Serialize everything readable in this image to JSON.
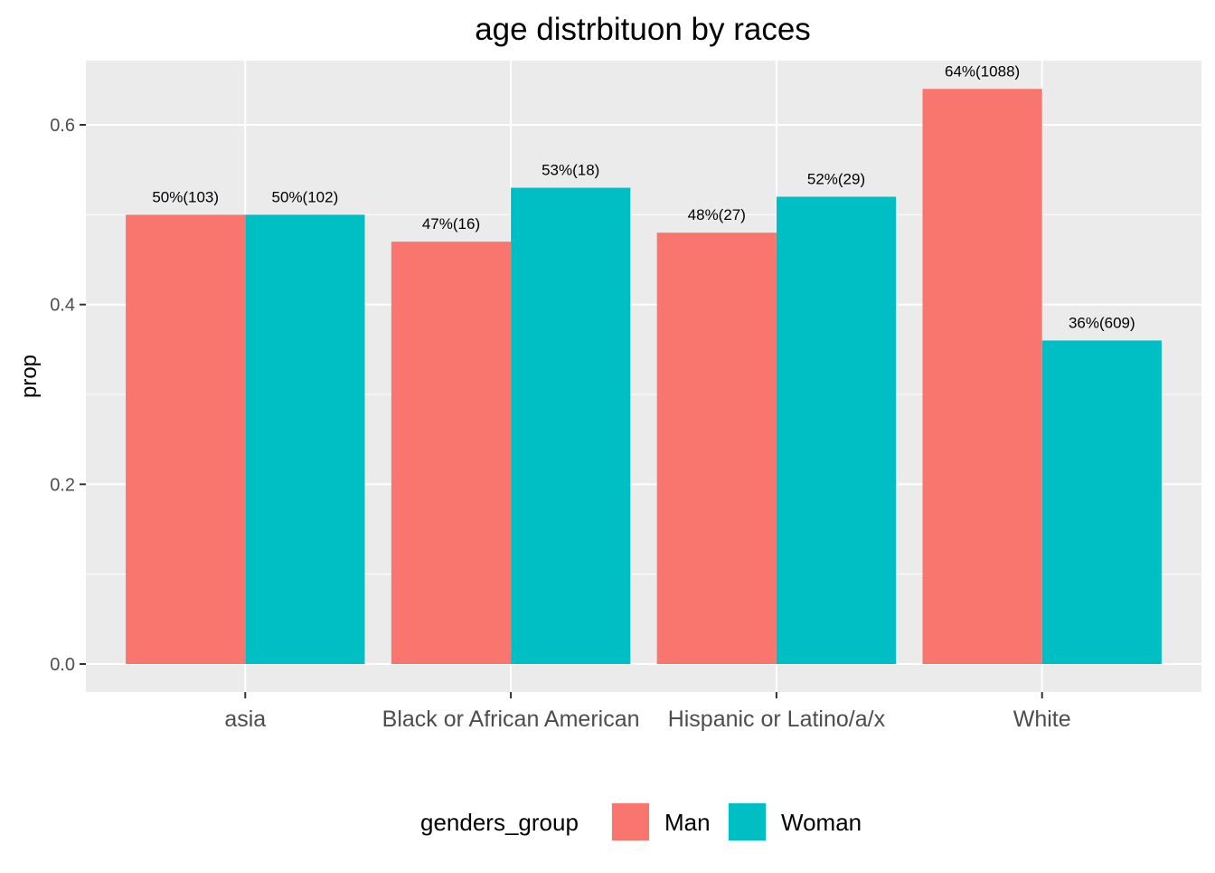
{
  "chart_data": {
    "type": "bar",
    "title": "age distrbituon by races",
    "xlabel": "",
    "ylabel": "prop",
    "categories": [
      "asia",
      "Black or African American",
      "Hispanic or Latino/a/x",
      "White"
    ],
    "series": [
      {
        "name": "Man",
        "color": "#F8766D",
        "values": [
          0.5,
          0.47,
          0.48,
          0.64
        ],
        "labels": [
          "50%(103)",
          "47%(16)",
          "48%(27)",
          "64%(1088)"
        ]
      },
      {
        "name": "Woman",
        "color": "#00BFC4",
        "values": [
          0.5,
          0.53,
          0.52,
          0.36
        ],
        "labels": [
          "50%(102)",
          "53%(18)",
          "52%(29)",
          "36%(609)"
        ]
      }
    ],
    "yticks": [
      "0.0",
      "0.2",
      "0.4",
      "0.6"
    ],
    "ylim": [
      -0.0315,
      0.6715
    ],
    "grid": true,
    "panel_background": "#EBEBEB",
    "legend": {
      "title": "genders_group",
      "position": "bottom"
    }
  }
}
